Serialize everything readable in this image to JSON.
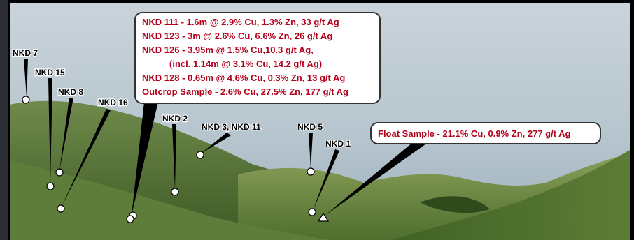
{
  "drill_holes": [
    "NKD 7",
    "NKD 15",
    "NKD 8",
    "NKD 16",
    "NKD 2",
    "NKD 3, NKD 11",
    "NKD 5",
    "NKD 1"
  ],
  "main_callout": {
    "lines": [
      "NKD 111 - 1.6m @ 2.9% Cu, 1.3% Zn, 33 g/t Ag",
      "NKD 123 - 3m @ 2.6% Cu, 6.6% Zn, 26 g/t Ag",
      "NKD 126 - 3.95m @ 1.5% Cu,10.3 g/t Ag,",
      "(incl. 1.14m @ 3.1% Cu, 14.2 g/t Ag)",
      "NKD 128 - 0.65m @ 4.6% Cu, 0.3% Zn, 13 g/t Ag",
      "Outcrop Sample - 2.6% Cu, 27.5% Zn, 177 g/t Ag"
    ]
  },
  "float_callout": "Float Sample - 21.1% Cu, 0.9% Zn, 277 g/t Ag"
}
